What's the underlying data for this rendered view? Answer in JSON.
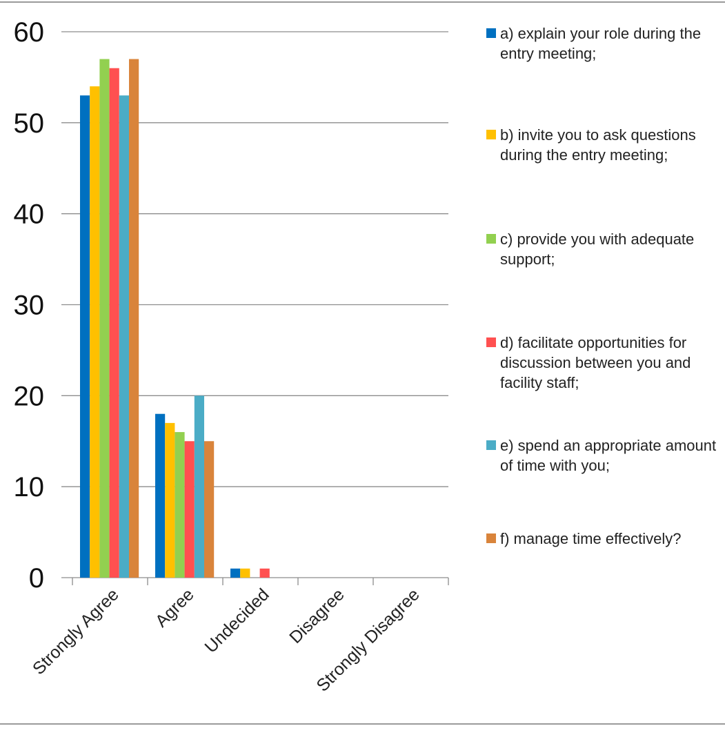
{
  "chart_data": {
    "type": "bar",
    "categories": [
      "Strongly Agree",
      "Agree",
      "Undecided",
      "Disagree",
      "Strongly Disagree"
    ],
    "series": [
      {
        "name": "a) explain your role during the entry meeting;",
        "color": "#0070c0",
        "values": [
          53,
          18,
          1,
          0,
          0
        ]
      },
      {
        "name": "b) invite you to ask questions during the entry meeting;",
        "color": "#ffc000",
        "values": [
          54,
          17,
          1,
          0,
          0
        ]
      },
      {
        "name": "c) provide you with adequate support;",
        "color": "#92d050",
        "values": [
          57,
          16,
          0,
          0,
          0
        ]
      },
      {
        "name": "d) facilitate opportunities for discussion between you and facility staff;",
        "color": "#ff5050",
        "values": [
          56,
          15,
          1,
          0,
          0
        ]
      },
      {
        "name": "e) spend an appropriate amount of time with you;",
        "color": "#4bacc6",
        "values": [
          53,
          20,
          0,
          0,
          0
        ]
      },
      {
        "name": "f) manage time effectively?",
        "color": "#d9843b",
        "values": [
          57,
          15,
          0,
          0,
          0
        ]
      }
    ],
    "ylim": [
      0,
      60
    ],
    "yticks": [
      0,
      10,
      20,
      30,
      40,
      50,
      60
    ],
    "grid": true,
    "legend_position": "right"
  }
}
